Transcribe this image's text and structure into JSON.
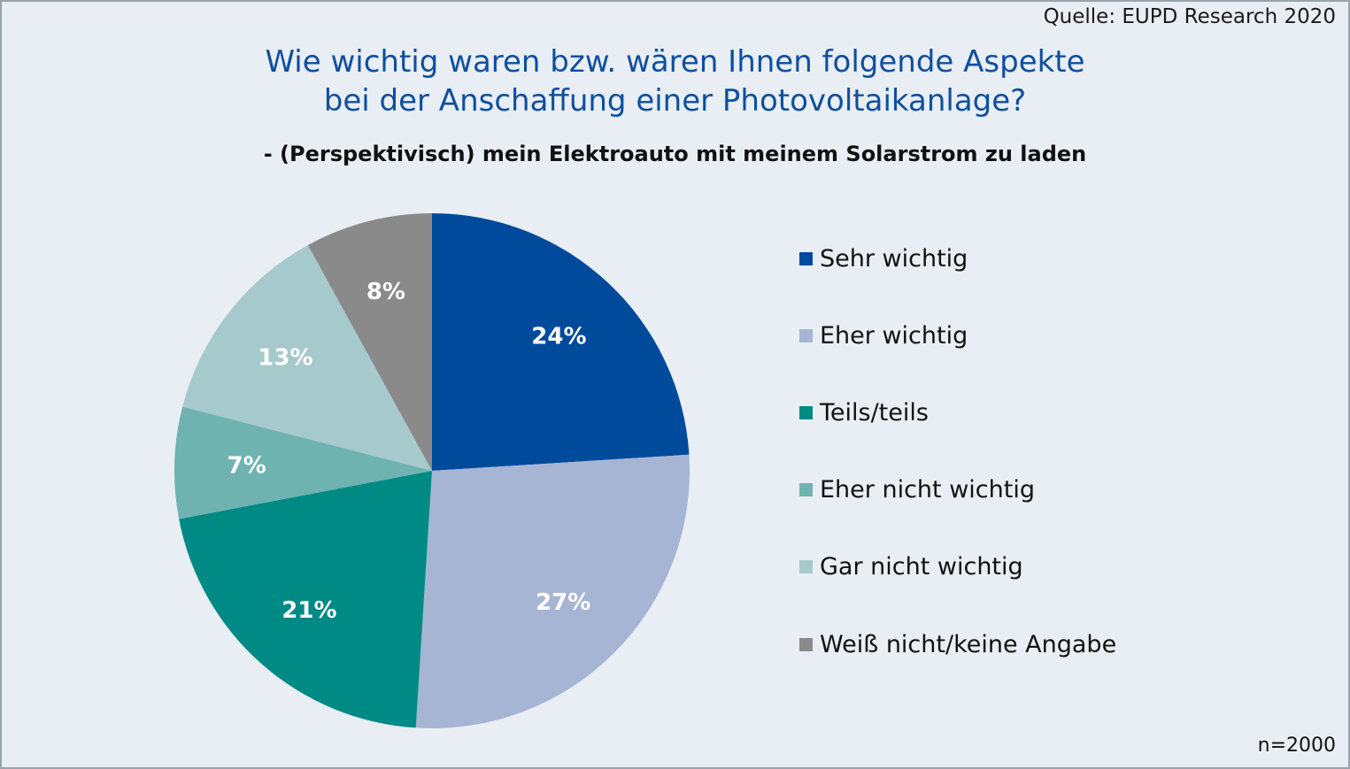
{
  "source": "Quelle: EUPD Research 2020",
  "title_line1": "Wie wichtig waren bzw. wären Ihnen folgende Aspekte",
  "title_line2": "bei der Anschaffung einer Photovoltaikanlage?",
  "subtitle": "- (Perspektivisch) mein Elektroauto mit meinem Solarstrom zu laden",
  "sample_size": "n=2000",
  "chart_data": {
    "type": "pie",
    "title": "Wie wichtig waren bzw. wären Ihnen folgende Aspekte bei der Anschaffung einer Photovoltaikanlage?",
    "subtitle": "- (Perspektivisch) mein Elektroauto mit meinem Solarstrom zu laden",
    "categories": [
      "Sehr wichtig",
      "Eher wichtig",
      "Teils/teils",
      "Eher nicht wichtig",
      "Gar nicht wichtig",
      "Weiß nicht/keine Angabe"
    ],
    "values": [
      24,
      27,
      21,
      7,
      13,
      8
    ],
    "labels": [
      "24%",
      "27%",
      "21%",
      "7%",
      "13%",
      "8%"
    ],
    "colors": [
      "#004a9c",
      "#a6b5d4",
      "#008a85",
      "#6fb3b1",
      "#a6c9cc",
      "#8a8a8a"
    ],
    "start": "12 o'clock, clockwise",
    "legend_position": "right"
  }
}
